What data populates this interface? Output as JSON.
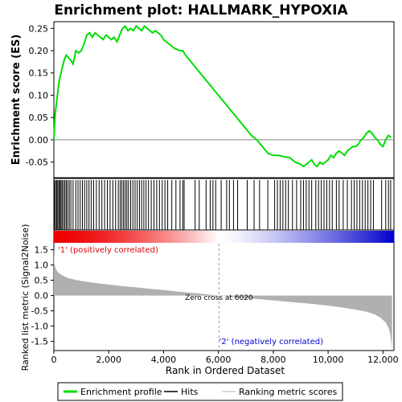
{
  "title": "Enrichment plot: HALLMARK_HYPOXIA",
  "chart_data": [
    {
      "type": "line",
      "panel": "enrichment",
      "ylabel": "Enrichment score (ES)",
      "xlim": [
        0,
        12400
      ],
      "ylim": [
        -0.085,
        0.265
      ],
      "y_ticks": [
        0.25,
        0.2,
        0.15,
        0.1,
        0.05,
        0.0,
        -0.05
      ],
      "y_tick_labels": [
        "0.25",
        "0.20",
        "0.15",
        "0.10",
        "0.05",
        "0.00",
        "-0.05"
      ],
      "grid": false,
      "series": [
        {
          "name": "Enrichment profile",
          "color": "#00dd00",
          "x": [
            0,
            50,
            100,
            150,
            200,
            260,
            320,
            380,
            450,
            520,
            600,
            700,
            800,
            900,
            1000,
            1100,
            1200,
            1300,
            1400,
            1500,
            1600,
            1700,
            1800,
            1900,
            2000,
            2100,
            2200,
            2300,
            2400,
            2500,
            2600,
            2700,
            2800,
            2900,
            3000,
            3100,
            3200,
            3300,
            3400,
            3500,
            3600,
            3700,
            3800,
            3900,
            4000,
            4200,
            4400,
            4600,
            4700,
            4800,
            5000,
            5200,
            5400,
            5600,
            5800,
            6000,
            6200,
            6400,
            6600,
            6800,
            7000,
            7200,
            7400,
            7600,
            7800,
            8000,
            8200,
            8400,
            8600,
            8800,
            9000,
            9100,
            9200,
            9300,
            9400,
            9500,
            9600,
            9700,
            9800,
            9900,
            10000,
            10100,
            10200,
            10300,
            10400,
            10500,
            10600,
            10700,
            10800,
            10900,
            11000,
            11100,
            11200,
            11300,
            11400,
            11500,
            11600,
            11700,
            11800,
            11900,
            12000,
            12100,
            12200,
            12300
          ],
          "y": [
            0.0,
            0.06,
            0.085,
            0.11,
            0.135,
            0.15,
            0.165,
            0.18,
            0.19,
            0.185,
            0.18,
            0.17,
            0.2,
            0.195,
            0.2,
            0.215,
            0.235,
            0.24,
            0.23,
            0.24,
            0.235,
            0.23,
            0.225,
            0.235,
            0.23,
            0.225,
            0.23,
            0.22,
            0.235,
            0.25,
            0.255,
            0.245,
            0.25,
            0.245,
            0.255,
            0.25,
            0.245,
            0.255,
            0.25,
            0.245,
            0.24,
            0.245,
            0.24,
            0.235,
            0.225,
            0.215,
            0.205,
            0.2,
            0.2,
            0.19,
            0.175,
            0.16,
            0.145,
            0.13,
            0.115,
            0.1,
            0.085,
            0.07,
            0.055,
            0.04,
            0.025,
            0.01,
            0.0,
            -0.015,
            -0.03,
            -0.035,
            -0.035,
            -0.038,
            -0.04,
            -0.05,
            -0.055,
            -0.06,
            -0.055,
            -0.05,
            -0.045,
            -0.055,
            -0.06,
            -0.05,
            -0.055,
            -0.05,
            -0.045,
            -0.035,
            -0.04,
            -0.03,
            -0.025,
            -0.03,
            -0.035,
            -0.025,
            -0.02,
            -0.015,
            -0.015,
            -0.01,
            0.0,
            0.005,
            0.015,
            0.02,
            0.015,
            0.005,
            0.0,
            -0.01,
            -0.015,
            0.0,
            0.01,
            0.005
          ]
        }
      ]
    },
    {
      "type": "scatter",
      "panel": "hits",
      "series": [
        {
          "name": "Hits",
          "color": "#000000",
          "x": [
            20,
            60,
            100,
            140,
            180,
            220,
            260,
            300,
            350,
            400,
            450,
            500,
            560,
            620,
            700,
            800,
            880,
            960,
            1040,
            1120,
            1200,
            1280,
            1360,
            1450,
            1550,
            1650,
            1750,
            1850,
            1950,
            2050,
            2150,
            2250,
            2350,
            2420,
            2480,
            2540,
            2600,
            2660,
            2720,
            2800,
            2880,
            2960,
            3040,
            3120,
            3200,
            3280,
            3360,
            3450,
            3550,
            3650,
            3750,
            3850,
            3950,
            4050,
            4150,
            4300,
            4450,
            4600,
            4700,
            4750,
            5150,
            5300,
            5550,
            5700,
            5800,
            5900,
            6100,
            6300,
            6400,
            6550,
            6700,
            7050,
            7300,
            7500,
            7800,
            8050,
            8150,
            8250,
            8350,
            8450,
            8550,
            8700,
            8850,
            9000,
            9100,
            9200,
            9300,
            9400,
            9550,
            9650,
            9750,
            9850,
            9950,
            10050,
            10150,
            10300,
            10400,
            10550,
            10700,
            10850,
            10950,
            11050,
            11150,
            11250,
            11350,
            11450,
            11550,
            11650,
            11950,
            12100,
            12200,
            12280
          ]
        }
      ]
    },
    {
      "type": "area",
      "panel": "ranked-metric",
      "ylabel": "Ranked list metric (Signal2Noise)",
      "xlabel": "Rank in Ordered Dataset",
      "xlim": [
        0,
        12400
      ],
      "ylim": [
        -1.8,
        1.7
      ],
      "x_ticks": [
        0,
        2000,
        4000,
        6000,
        8000,
        10000,
        12000
      ],
      "x_tick_labels": [
        "0",
        "2,000",
        "4,000",
        "6,000",
        "8,000",
        "10,000",
        "12,000"
      ],
      "y_ticks": [
        1.5,
        1.0,
        0.5,
        0.0,
        -0.5,
        -1.0,
        -1.5
      ],
      "y_tick_labels": [
        "1.5",
        "1.0",
        "0.5",
        "0.0",
        "-0.5",
        "-1.0",
        "-1.5"
      ],
      "series": [
        {
          "name": "Ranking metric scores",
          "color": "#b0b0b0",
          "x": [
            0,
            20,
            60,
            120,
            200,
            350,
            500,
            800,
            1200,
            1600,
            2000,
            2500,
            3000,
            3500,
            4000,
            4500,
            5000,
            5500,
            6020,
            6500,
            7000,
            7500,
            8000,
            8500,
            9000,
            9500,
            10000,
            10500,
            11000,
            11400,
            11700,
            11900,
            12100,
            12200,
            12260,
            12300,
            12330
          ],
          "y": [
            1.62,
            1.05,
            0.9,
            0.8,
            0.72,
            0.64,
            0.58,
            0.51,
            0.45,
            0.4,
            0.36,
            0.31,
            0.27,
            0.22,
            0.18,
            0.13,
            0.09,
            0.05,
            0.0,
            -0.04,
            -0.08,
            -0.12,
            -0.16,
            -0.2,
            -0.24,
            -0.28,
            -0.33,
            -0.39,
            -0.46,
            -0.53,
            -0.62,
            -0.72,
            -0.88,
            -1.05,
            -1.25,
            -1.5,
            -1.75
          ]
        }
      ],
      "annotations": {
        "positive_label": "'1' (positively correlated)",
        "negative_label": "'2' (negatively correlated)",
        "zero_cross_label": "Zero cross at 6020",
        "zero_cross_x": 6020
      }
    }
  ],
  "colors": {
    "profile": "#00dd00",
    "positive_text": "#dd0000",
    "negative_text": "#0000cc",
    "metric_fill": "#b0b0b0",
    "bar_positive": "#ee0000",
    "bar_neutral": "#ffffff",
    "bar_negative": "#0000cc"
  },
  "legend": {
    "items": [
      {
        "label": "Enrichment profile",
        "color": "#00dd00",
        "kind": "thick-line"
      },
      {
        "label": "Hits",
        "color": "#000000",
        "kind": "line"
      },
      {
        "label": "Ranking metric scores",
        "color": "#b0b0b0",
        "kind": "thin-line"
      }
    ]
  }
}
